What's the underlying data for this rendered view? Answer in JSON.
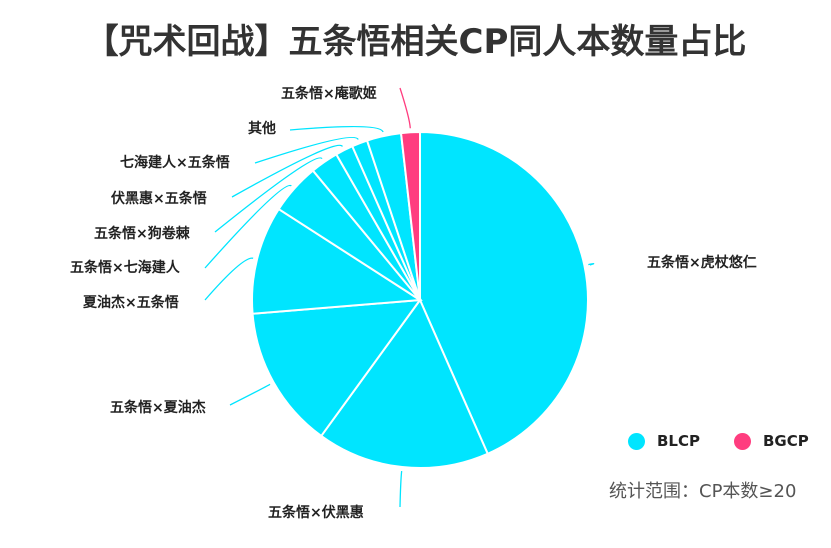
{
  "title": "【咒术回战】五条悟相关CP同人本数量占比",
  "legend": [
    {
      "label": "BLCP",
      "color": "#00E5FF"
    },
    {
      "label": "BGCP",
      "color": "#FF3D7F"
    }
  ],
  "note": "统计范围：CP本数≥20",
  "chart_data": {
    "type": "pie",
    "title": "【咒术回战】五条悟相关CP同人本数量占比",
    "start_angle": "top, clockwise",
    "categories": [
      "五条悟×虎杖悠仁",
      "五条悟×伏黑惠",
      "五条悟×夏油杰",
      "夏油杰×五条悟",
      "五条悟×七海建人",
      "五条悟×狗卷棘",
      "伏黑惠×五条悟",
      "七海建人×五条悟",
      "其他",
      "五条悟×庵歌姬"
    ],
    "values": [
      43.4,
      16.6,
      13.7,
      10.4,
      4.9,
      2.7,
      1.7,
      1.5,
      3.3,
      1.8
    ],
    "groups": [
      "BLCP",
      "BLCP",
      "BLCP",
      "BLCP",
      "BLCP",
      "BLCP",
      "BLCP",
      "BLCP",
      "BLCP",
      "BGCP"
    ],
    "legend": [
      "BLCP",
      "BGCP"
    ],
    "legend_position": "bottom-right",
    "annotation": "统计范围：CP本数≥20"
  }
}
